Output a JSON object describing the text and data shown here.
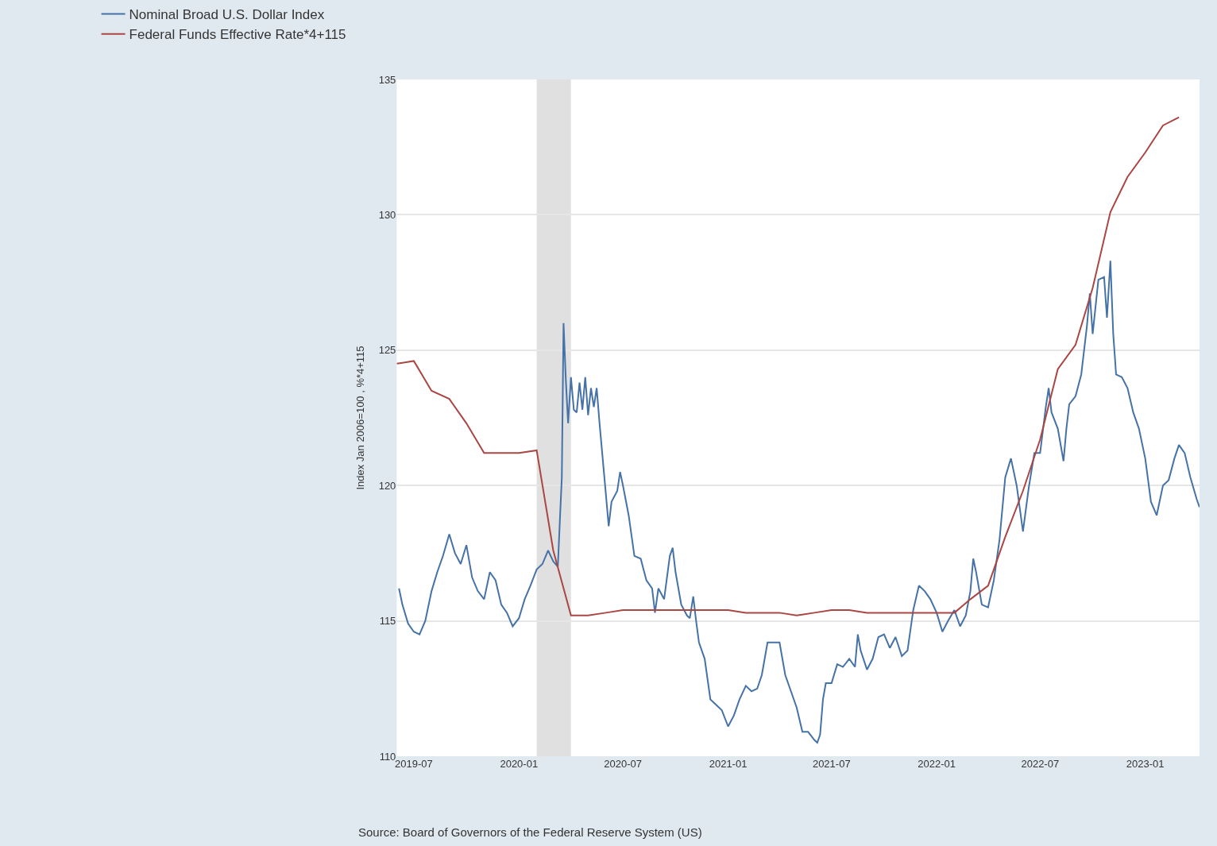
{
  "chart_data": {
    "type": "line",
    "ylabel": "Index Jan 2006=100 , %*4+115",
    "xlim": [
      "2019-06-01",
      "2023-04-06"
    ],
    "xticks": [
      "2019-07",
      "2020-01",
      "2020-07",
      "2021-01",
      "2021-07",
      "2022-01",
      "2022-07",
      "2023-01"
    ],
    "ylim": [
      110,
      135
    ],
    "yticks": [
      110,
      115,
      120,
      125,
      130,
      135
    ],
    "grid": "y",
    "legend": "top left",
    "marker": "none",
    "line_style": "solid",
    "bands": [
      {
        "axis": "x",
        "from": "2020-02-01",
        "to": "2020-04-01",
        "color": "#e0e0e0"
      }
    ],
    "annotations": [
      "Source: Board of Governors of the Federal Reserve System (US)"
    ],
    "series": [
      {
        "name": "Nominal Broad U.S. Dollar Index",
        "color": "#4572a7",
        "x": [
          "2019-06-05",
          "2019-06-11",
          "2019-06-21",
          "2019-07-01",
          "2019-07-11",
          "2019-07-21",
          "2019-08-01",
          "2019-08-11",
          "2019-08-21",
          "2019-09-01",
          "2019-09-11",
          "2019-09-21",
          "2019-10-01",
          "2019-10-11",
          "2019-10-21",
          "2019-11-01",
          "2019-11-11",
          "2019-11-21",
          "2019-12-01",
          "2019-12-11",
          "2019-12-21",
          "2020-01-01",
          "2020-01-11",
          "2020-01-21",
          "2020-02-01",
          "2020-02-11",
          "2020-02-21",
          "2020-03-01",
          "2020-03-09",
          "2020-03-13",
          "2020-03-16",
          "2020-03-19",
          "2020-03-23",
          "2020-03-27",
          "2020-04-01",
          "2020-04-06",
          "2020-04-11",
          "2020-04-16",
          "2020-04-21",
          "2020-04-26",
          "2020-05-01",
          "2020-05-06",
          "2020-05-11",
          "2020-05-16",
          "2020-05-21",
          "2020-06-01",
          "2020-06-06",
          "2020-06-11",
          "2020-06-21",
          "2020-06-26",
          "2020-07-01",
          "2020-07-11",
          "2020-07-21",
          "2020-08-01",
          "2020-08-11",
          "2020-08-21",
          "2020-08-26",
          "2020-09-01",
          "2020-09-11",
          "2020-09-21",
          "2020-09-26",
          "2020-10-01",
          "2020-10-11",
          "2020-10-21",
          "2020-10-26",
          "2020-11-01",
          "2020-11-06",
          "2020-11-11",
          "2020-11-21",
          "2020-12-01",
          "2020-12-11",
          "2020-12-21",
          "2021-01-01",
          "2021-01-11",
          "2021-01-21",
          "2021-02-01",
          "2021-02-11",
          "2021-02-21",
          "2021-03-01",
          "2021-03-11",
          "2021-03-21",
          "2021-04-01",
          "2021-04-11",
          "2021-04-21",
          "2021-05-01",
          "2021-05-11",
          "2021-05-21",
          "2021-06-01",
          "2021-06-06",
          "2021-06-11",
          "2021-06-16",
          "2021-06-21",
          "2021-07-01",
          "2021-07-11",
          "2021-07-21",
          "2021-08-01",
          "2021-08-11",
          "2021-08-16",
          "2021-08-21",
          "2021-09-01",
          "2021-09-11",
          "2021-09-21",
          "2021-10-01",
          "2021-10-11",
          "2021-10-21",
          "2021-11-01",
          "2021-11-11",
          "2021-11-21",
          "2021-12-01",
          "2021-12-11",
          "2021-12-21",
          "2022-01-01",
          "2022-01-11",
          "2022-01-21",
          "2022-02-01",
          "2022-02-11",
          "2022-02-21",
          "2022-03-01",
          "2022-03-06",
          "2022-03-11",
          "2022-03-21",
          "2022-04-01",
          "2022-04-11",
          "2022-04-21",
          "2022-05-01",
          "2022-05-11",
          "2022-05-21",
          "2022-06-01",
          "2022-06-11",
          "2022-06-21",
          "2022-07-01",
          "2022-07-11",
          "2022-07-16",
          "2022-07-21",
          "2022-08-01",
          "2022-08-11",
          "2022-08-16",
          "2022-08-21",
          "2022-09-01",
          "2022-09-11",
          "2022-09-21",
          "2022-09-26",
          "2022-10-01",
          "2022-10-11",
          "2022-10-21",
          "2022-10-26",
          "2022-11-01",
          "2022-11-06",
          "2022-11-11",
          "2022-11-21",
          "2022-12-01",
          "2022-12-11",
          "2022-12-21",
          "2023-01-01",
          "2023-01-11",
          "2023-01-21",
          "2023-02-01",
          "2023-02-11",
          "2023-02-21",
          "2023-03-01",
          "2023-03-11",
          "2023-03-21",
          "2023-04-01",
          "2023-04-06"
        ],
        "values": [
          116.2,
          115.6,
          114.9,
          114.6,
          114.5,
          115.0,
          116.1,
          116.8,
          117.4,
          118.2,
          117.5,
          117.1,
          117.8,
          116.6,
          116.1,
          115.8,
          116.8,
          116.5,
          115.6,
          115.3,
          114.8,
          115.1,
          115.8,
          116.3,
          116.9,
          117.1,
          117.6,
          117.2,
          117.0,
          118.9,
          120.3,
          126.0,
          123.9,
          122.3,
          124.0,
          122.8,
          122.7,
          123.8,
          122.8,
          124.0,
          122.6,
          123.6,
          122.9,
          123.6,
          122.3,
          119.7,
          118.5,
          119.4,
          119.8,
          120.5,
          120.0,
          118.9,
          117.4,
          117.3,
          116.5,
          116.2,
          115.3,
          116.2,
          115.8,
          117.4,
          117.7,
          116.8,
          115.6,
          115.2,
          115.1,
          115.9,
          115.0,
          114.2,
          113.6,
          112.1,
          111.9,
          111.7,
          111.1,
          111.5,
          112.1,
          112.6,
          112.4,
          112.5,
          113.0,
          114.2,
          114.2,
          114.2,
          113.0,
          112.4,
          111.8,
          110.9,
          110.9,
          110.6,
          110.5,
          110.8,
          112.1,
          112.7,
          112.7,
          113.4,
          113.3,
          113.6,
          113.3,
          114.5,
          113.9,
          113.2,
          113.6,
          114.4,
          114.5,
          114.0,
          114.4,
          113.7,
          113.9,
          115.4,
          116.3,
          116.1,
          115.8,
          115.3,
          114.6,
          115.0,
          115.4,
          114.8,
          115.2,
          116.1,
          117.3,
          116.8,
          115.6,
          115.5,
          116.5,
          118.0,
          120.3,
          121.0,
          120.0,
          118.3,
          119.9,
          121.2,
          121.2,
          122.9,
          123.6,
          122.7,
          122.1,
          120.9,
          122.1,
          123.0,
          123.3,
          124.1,
          125.9,
          127.1,
          125.6,
          127.6,
          127.7,
          126.2,
          128.3,
          125.6,
          124.1,
          124.0,
          123.6,
          122.7,
          122.1,
          121.0,
          119.4,
          118.9,
          120.0,
          120.2,
          121.0,
          121.5,
          121.2,
          120.3,
          119.5,
          119.2
        ]
      },
      {
        "name": "Federal Funds Effective Rate*4+115",
        "color": "#aa4643",
        "x": [
          "2019-06",
          "2019-07",
          "2019-08",
          "2019-09",
          "2019-10",
          "2019-11",
          "2019-12",
          "2020-01",
          "2020-02",
          "2020-03",
          "2020-04",
          "2020-05",
          "2020-06",
          "2020-07",
          "2020-08",
          "2020-09",
          "2020-10",
          "2020-11",
          "2020-12",
          "2021-01",
          "2021-02",
          "2021-03",
          "2021-04",
          "2021-05",
          "2021-06",
          "2021-07",
          "2021-08",
          "2021-09",
          "2021-10",
          "2021-11",
          "2021-12",
          "2022-01",
          "2022-02",
          "2022-03",
          "2022-04",
          "2022-05",
          "2022-06",
          "2022-07",
          "2022-08",
          "2022-09",
          "2022-10",
          "2022-11",
          "2022-12",
          "2023-01",
          "2023-02",
          "2023-03"
        ],
        "values": [
          124.5,
          124.6,
          123.5,
          123.2,
          122.3,
          121.2,
          121.2,
          121.2,
          121.3,
          117.6,
          115.2,
          115.2,
          115.3,
          115.4,
          115.4,
          115.4,
          115.4,
          115.4,
          115.4,
          115.4,
          115.3,
          115.3,
          115.3,
          115.2,
          115.3,
          115.4,
          115.4,
          115.3,
          115.3,
          115.3,
          115.3,
          115.3,
          115.3,
          115.8,
          116.3,
          118.1,
          119.8,
          121.7,
          124.3,
          125.2,
          127.3,
          130.1,
          131.4,
          132.3,
          133.3,
          133.6
        ]
      }
    ]
  }
}
